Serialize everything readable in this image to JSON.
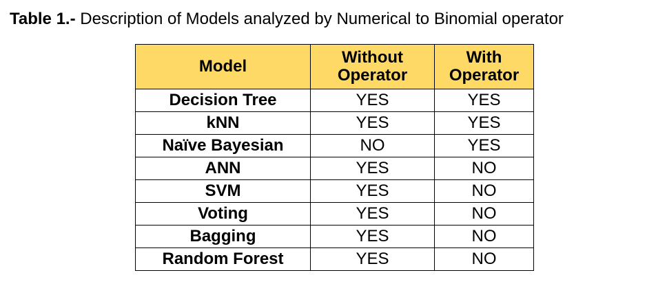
{
  "caption": {
    "label": "Table 1.-",
    "text": "Description of Models analyzed by Numerical to Binomial operator"
  },
  "colors": {
    "header_background": "#FFD966",
    "border": "#000000"
  },
  "table": {
    "headers": [
      [
        "Model"
      ],
      [
        "Without",
        "Operator"
      ],
      [
        "With",
        "Operator"
      ]
    ],
    "rows": [
      {
        "model": "Decision Tree",
        "without": "YES",
        "with": "YES"
      },
      {
        "model": "kNN",
        "without": "YES",
        "with": "YES"
      },
      {
        "model": "Naïve Bayesian",
        "without": "NO",
        "with": "YES"
      },
      {
        "model": "ANN",
        "without": "YES",
        "with": "NO"
      },
      {
        "model": "SVM",
        "without": "YES",
        "with": "NO"
      },
      {
        "model": "Voting",
        "without": "YES",
        "with": "NO"
      },
      {
        "model": "Bagging",
        "without": "YES",
        "with": "NO"
      },
      {
        "model": "Random Forest",
        "without": "YES",
        "with": "NO"
      }
    ]
  }
}
